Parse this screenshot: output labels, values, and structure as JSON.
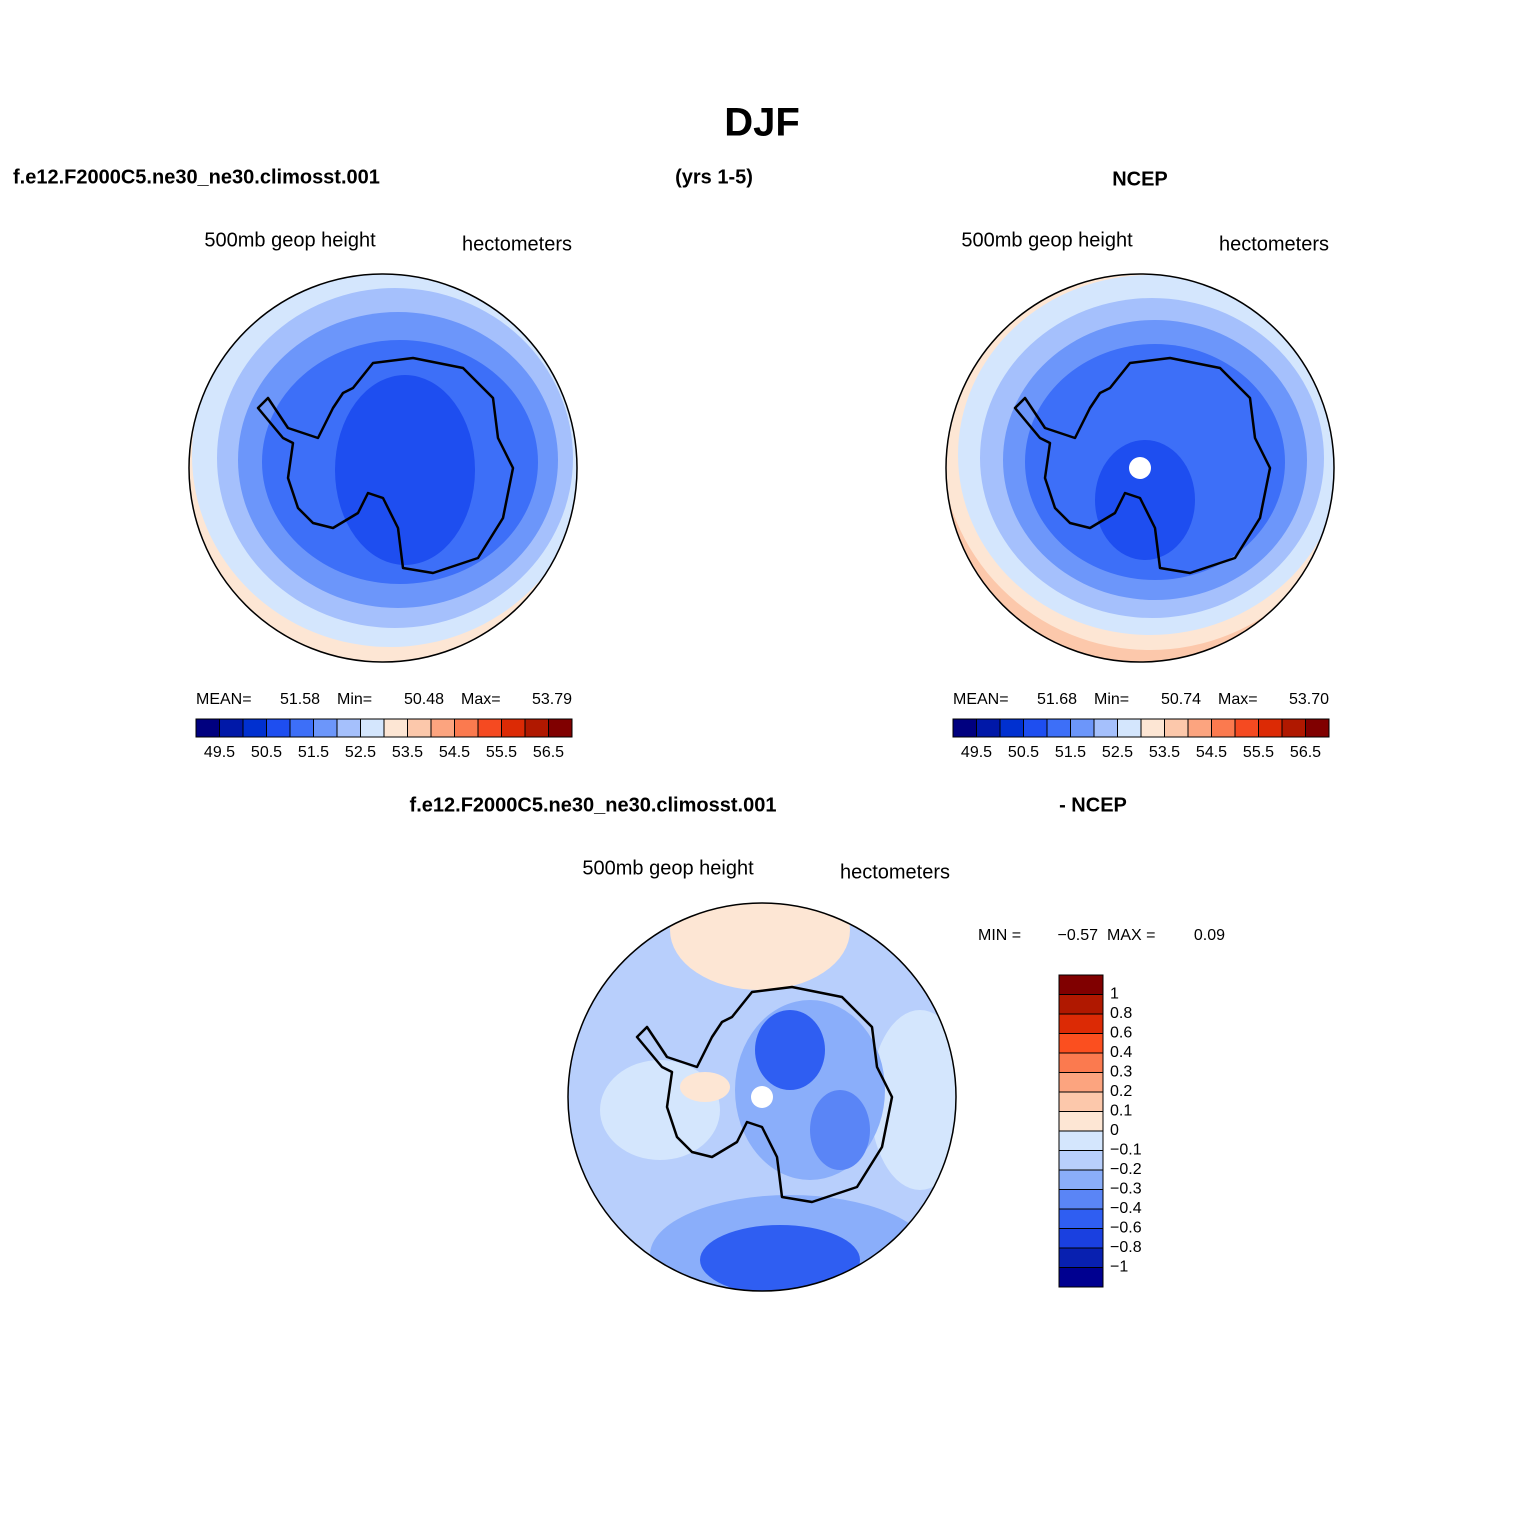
{
  "title": "DJF",
  "panels": [
    {
      "header_left": "f.e12.F2000C5.ne30_ne30.climosst.001",
      "header_center": "(yrs 1-5)",
      "variable": "500mb  geop height",
      "units": "hectometers",
      "stats": [
        {
          "label": "MEAN=",
          "value": "51.58"
        },
        {
          "label": "Min=",
          "value": "50.48"
        },
        {
          "label": "Max=",
          "value": "53.79"
        }
      ]
    },
    {
      "header_center": "NCEP",
      "variable": "500mb  geop height",
      "units": "hectometers",
      "stats": [
        {
          "label": "MEAN=",
          "value": "51.68"
        },
        {
          "label": "Min=",
          "value": "50.74"
        },
        {
          "label": "Max=",
          "value": "53.70"
        }
      ]
    }
  ],
  "colorbar": {
    "colors": [
      "#00007f",
      "#0018a8",
      "#0030d0",
      "#1e4ef0",
      "#3d6ff8",
      "#6c96fa",
      "#a5c0fc",
      "#d4e6fd",
      "#fde6d4",
      "#fcc8ab",
      "#fca47f",
      "#fb7a4f",
      "#f54a21",
      "#dc2a05",
      "#b01800",
      "#800000"
    ],
    "labels": [
      "49.5",
      "50.5",
      "51.5",
      "52.5",
      "53.5",
      "54.5",
      "55.5",
      "56.5"
    ]
  },
  "difference": {
    "header_left": "f.e12.F2000C5.ne30_ne30.climosst.001",
    "header_right": "- NCEP",
    "variable": "500mb  geop height",
    "units": "hectometers",
    "stats": [
      {
        "label": "MIN =",
        "value": "−0.57"
      },
      {
        "label": "MAX =",
        "value": "0.09"
      }
    ],
    "colorbar": {
      "colors": [
        "#800000",
        "#b01800",
        "#dc2a05",
        "#fb4f1f",
        "#fb7a4f",
        "#fca47f",
        "#fcc8ab",
        "#fde6d4",
        "#d4e6fd",
        "#b8cffc",
        "#8aaefa",
        "#5a85f6",
        "#2f5ef2",
        "#1a40e0",
        "#0820b0",
        "#000090"
      ],
      "labels": [
        "1",
        "0.8",
        "0.6",
        "0.4",
        "0.3",
        "0.2",
        "0.1",
        "0",
        "−0.1",
        "−0.2",
        "−0.3",
        "−0.4",
        "−0.6",
        "−0.8",
        "−1"
      ]
    }
  }
}
